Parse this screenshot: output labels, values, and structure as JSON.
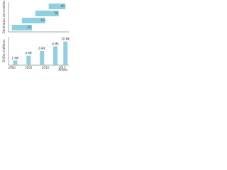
{
  "chart_data": [
    {
      "type": "timeline",
      "ylabel": "Génération de modèles",
      "categories": [
        "1G",
        "2G",
        "3G",
        "4G"
      ],
      "start": [
        2000,
        2003,
        2007,
        2011
      ],
      "end": [
        2006,
        2010,
        2014,
        2016
      ],
      "color": "#8fd0e0",
      "xlim": [
        1999,
        2017
      ]
    },
    {
      "type": "bar",
      "ylabel": "Chiffre d'affaires",
      "xlabel": "Année",
      "x": [
        2001,
        2005,
        2009,
        2013,
        2016
      ],
      "values": [
        2,
        4,
        6,
        8,
        10
      ],
      "value_labels": [
        "2 M€",
        "4 M€",
        "6 M€",
        "8 M€",
        "10 M€"
      ],
      "color": "#8fd0e0",
      "xlim": [
        1999,
        2017
      ],
      "ylim": [
        0,
        12
      ],
      "xticks": [
        2000,
        2005,
        2010,
        2015
      ]
    }
  ]
}
